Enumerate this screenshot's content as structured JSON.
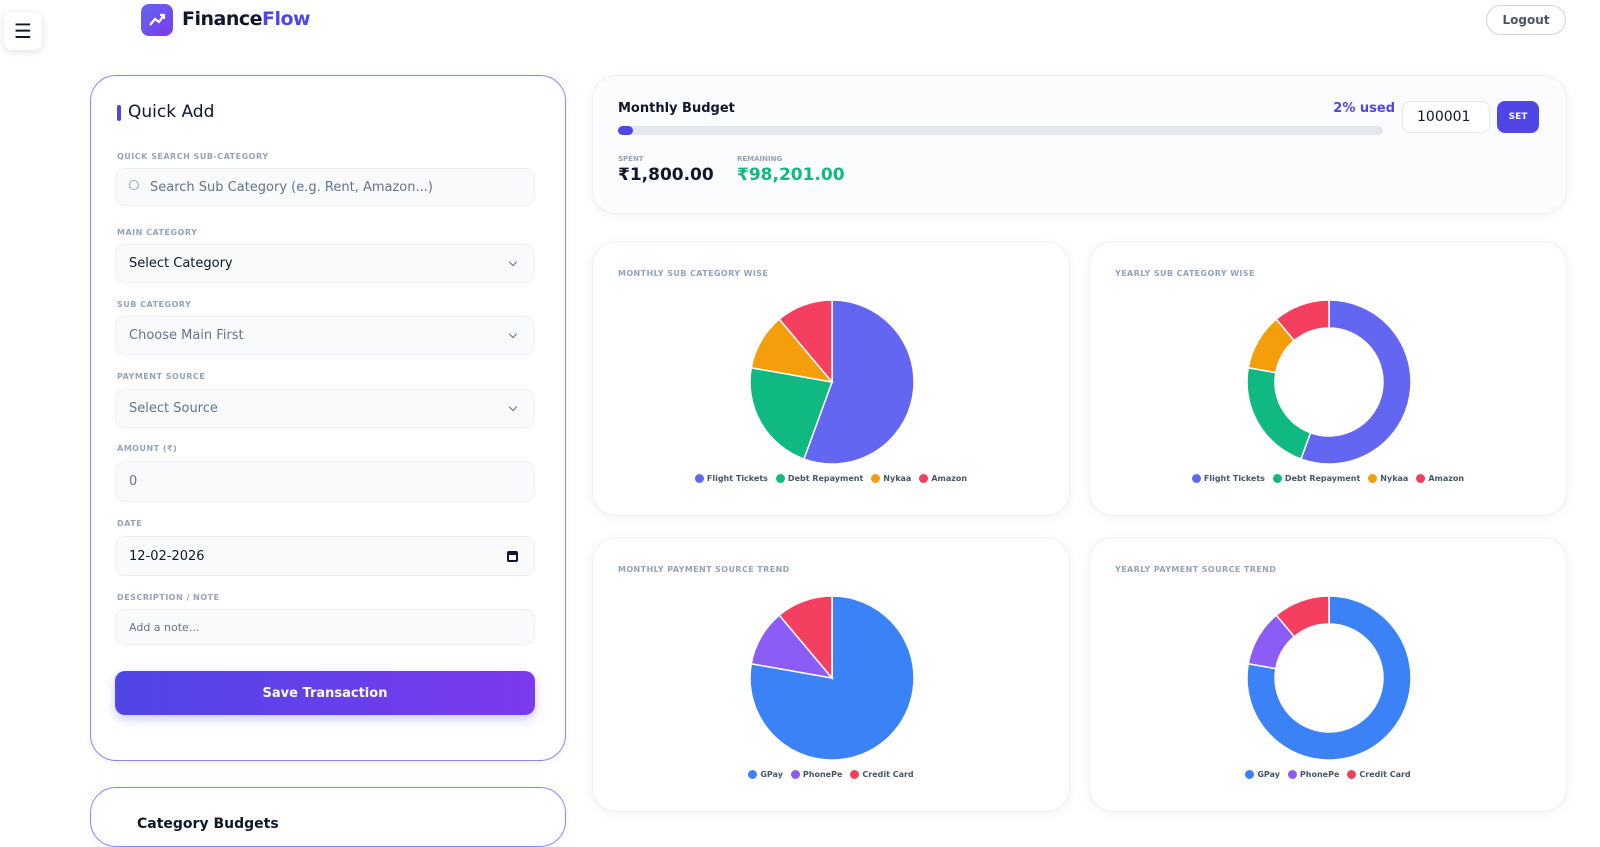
{
  "header": {
    "brand_part1": "Finance",
    "brand_part2": "Flow",
    "logout": "Logout"
  },
  "quick_add": {
    "title": "Quick Add",
    "fields": [
      {
        "label": "QUICK SEARCH SUB-CATEGORY",
        "placeholder": "Search Sub Category (e.g. Rent, Amazon...)"
      },
      {
        "label": "MAIN CATEGORY",
        "placeholder": "Select Category"
      },
      {
        "label": "SUB CATEGORY",
        "placeholder": "Choose Main First"
      },
      {
        "label": "PAYMENT SOURCE",
        "placeholder": "Select Source"
      },
      {
        "label": "AMOUNT (₹)",
        "placeholder": "0"
      },
      {
        "label": "DATE",
        "placeholder": "12-02-2026"
      },
      {
        "label": "DESCRIPTION / NOTE",
        "placeholder": "Add a note..."
      }
    ],
    "button": "Save Transaction"
  },
  "category_budgets": {
    "title": "Category Budgets"
  },
  "budget": {
    "title": "Monthly Budget",
    "used_label": "2% used",
    "progress": 2,
    "input": "100001",
    "button": "SET",
    "spent_label": "SPENT",
    "spent": "₹1,800.00",
    "remaining_label": "REMAINING",
    "remaining": "₹98,201.00"
  },
  "chart_data": [
    {
      "type": "pie",
      "title": "MONTHLY SUB CATEGORY WISE",
      "categories": [
        "Flight Tickets",
        "Debt Repayment",
        "Nykaa",
        "Amazon"
      ],
      "values": [
        1000,
        400,
        200,
        200
      ],
      "colors": [
        "#6366f1",
        "#10b981",
        "#f59e0b",
        "#f43f5e"
      ]
    },
    {
      "type": "doughnut",
      "title": "YEARLY SUB CATEGORY WISE",
      "categories": [
        "Flight Tickets",
        "Debt Repayment",
        "Nykaa",
        "Amazon"
      ],
      "values": [
        1000,
        400,
        200,
        200
      ],
      "colors": [
        "#6366f1",
        "#10b981",
        "#f59e0b",
        "#f43f5e"
      ]
    },
    {
      "type": "pie",
      "title": "MONTHLY PAYMENT SOURCE TREND",
      "categories": [
        "GPay",
        "PhonePe",
        "Credit Card"
      ],
      "values": [
        1400,
        200,
        200
      ],
      "colors": [
        "#3b82f6",
        "#8b5cf6",
        "#f43f5e"
      ]
    },
    {
      "type": "doughnut",
      "title": "YEARLY PAYMENT SOURCE TREND",
      "categories": [
        "GPay",
        "PhonePe",
        "Credit Card"
      ],
      "values": [
        1400,
        200,
        200
      ],
      "colors": [
        "#3b82f6",
        "#8b5cf6",
        "#f43f5e"
      ]
    }
  ]
}
